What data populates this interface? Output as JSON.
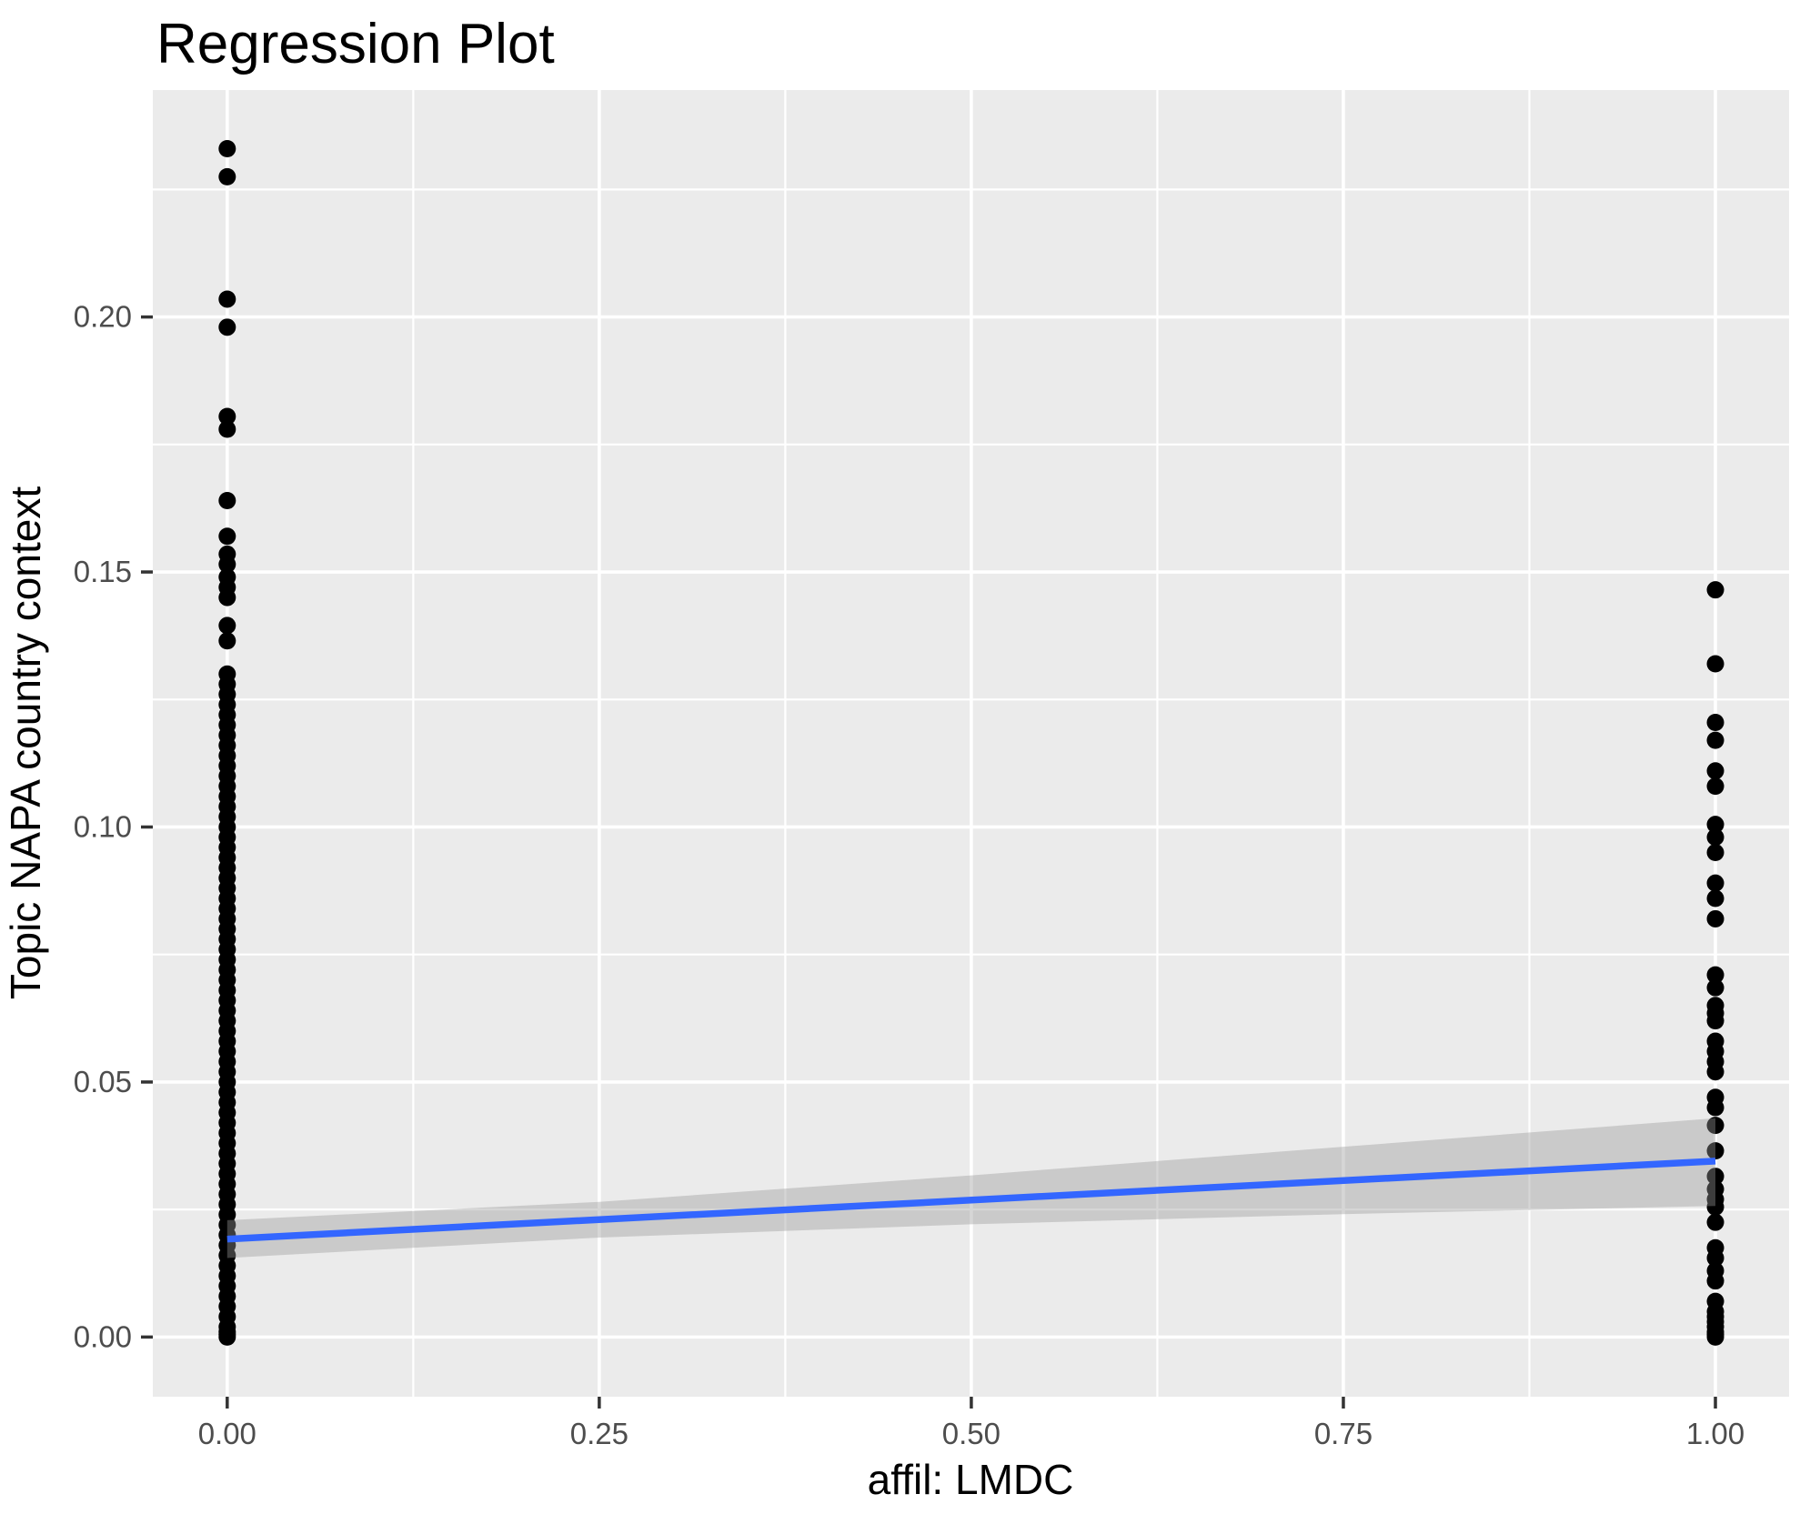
{
  "page": {
    "title": "Regression Plot"
  },
  "chart_data": {
    "type": "scatter",
    "title": "Regression Plot",
    "xlabel": "affil: LMDC",
    "ylabel": "Topic NAPA country context",
    "legend_position": "none",
    "grid": true,
    "xlim": [
      -0.05,
      1.0495
    ],
    "ylim": [
      -0.0117,
      0.2445
    ],
    "x_ticks": {
      "values": [
        0,
        0.25,
        0.5,
        0.75,
        1.0
      ],
      "labels": [
        "0.00",
        "0.25",
        "0.50",
        "0.75",
        "1.00"
      ]
    },
    "y_ticks": {
      "values": [
        0,
        0.05,
        0.1,
        0.15,
        0.2
      ],
      "labels": [
        "0.00",
        "0.05",
        "0.10",
        "0.15",
        "0.20"
      ]
    },
    "x_minor": [
      0.125,
      0.375,
      0.625,
      0.875
    ],
    "y_minor": [
      0.025,
      0.075,
      0.125,
      0.175,
      0.225
    ],
    "series": [
      {
        "name": "affil LMDC = 0",
        "x": 0,
        "y": [
          0.233,
          0.2275,
          0.2035,
          0.198,
          0.1805,
          0.178,
          0.164,
          0.157,
          0.1535,
          0.1515,
          0.149,
          0.147,
          0.145,
          0.1395,
          0.1365,
          0.13,
          0.128,
          0.126,
          0.124,
          0.122,
          0.12,
          0.118,
          0.116,
          0.114,
          0.112,
          0.11,
          0.108,
          0.106,
          0.104,
          0.102,
          0.1,
          0.098,
          0.096,
          0.094,
          0.092,
          0.09,
          0.088,
          0.086,
          0.084,
          0.082,
          0.08,
          0.078,
          0.076,
          0.074,
          0.072,
          0.07,
          0.068,
          0.066,
          0.064,
          0.062,
          0.06,
          0.058,
          0.056,
          0.054,
          0.052,
          0.05,
          0.048,
          0.046,
          0.044,
          0.042,
          0.04,
          0.038,
          0.036,
          0.034,
          0.032,
          0.03,
          0.028,
          0.026,
          0.024,
          0.022,
          0.02,
          0.018,
          0.016,
          0.014,
          0.012,
          0.01,
          0.008,
          0.006,
          0.004,
          0.002,
          0.001,
          0.0005,
          0
        ]
      },
      {
        "name": "affil LMDC = 1",
        "x": 1,
        "y": [
          0.1465,
          0.132,
          0.1205,
          0.117,
          0.111,
          0.108,
          0.1005,
          0.098,
          0.095,
          0.089,
          0.086,
          0.082,
          0.071,
          0.0685,
          0.065,
          0.0635,
          0.062,
          0.058,
          0.056,
          0.054,
          0.052,
          0.047,
          0.045,
          0.0415,
          0.0365,
          0.0315,
          0.029,
          0.027,
          0.0255,
          0.0225,
          0.0175,
          0.0155,
          0.013,
          0.011,
          0.007,
          0.005,
          0.004,
          0.003,
          0.002,
          0.001,
          0.0005,
          0
        ]
      }
    ],
    "regression_line": {
      "x": [
        0,
        1
      ],
      "y": [
        0.0192,
        0.0345
      ]
    },
    "confidence_band": {
      "x": [
        0,
        0.25,
        0.5,
        0.75,
        1
      ],
      "lo": [
        0.0155,
        0.0195,
        0.0221,
        0.0241,
        0.0257
      ],
      "hi": [
        0.0229,
        0.0265,
        0.0317,
        0.0373,
        0.0429
      ]
    },
    "colors": {
      "background": "#FFFFFF",
      "panel": "#EBEBEB",
      "grid": "#FFFFFF",
      "point": "#000000",
      "line": "#3366FF",
      "ribbon": "rgba(153,153,153,0.40)",
      "tick_label": "#4D4D4D",
      "tick_mark": "#333333",
      "text": "#000000"
    }
  }
}
